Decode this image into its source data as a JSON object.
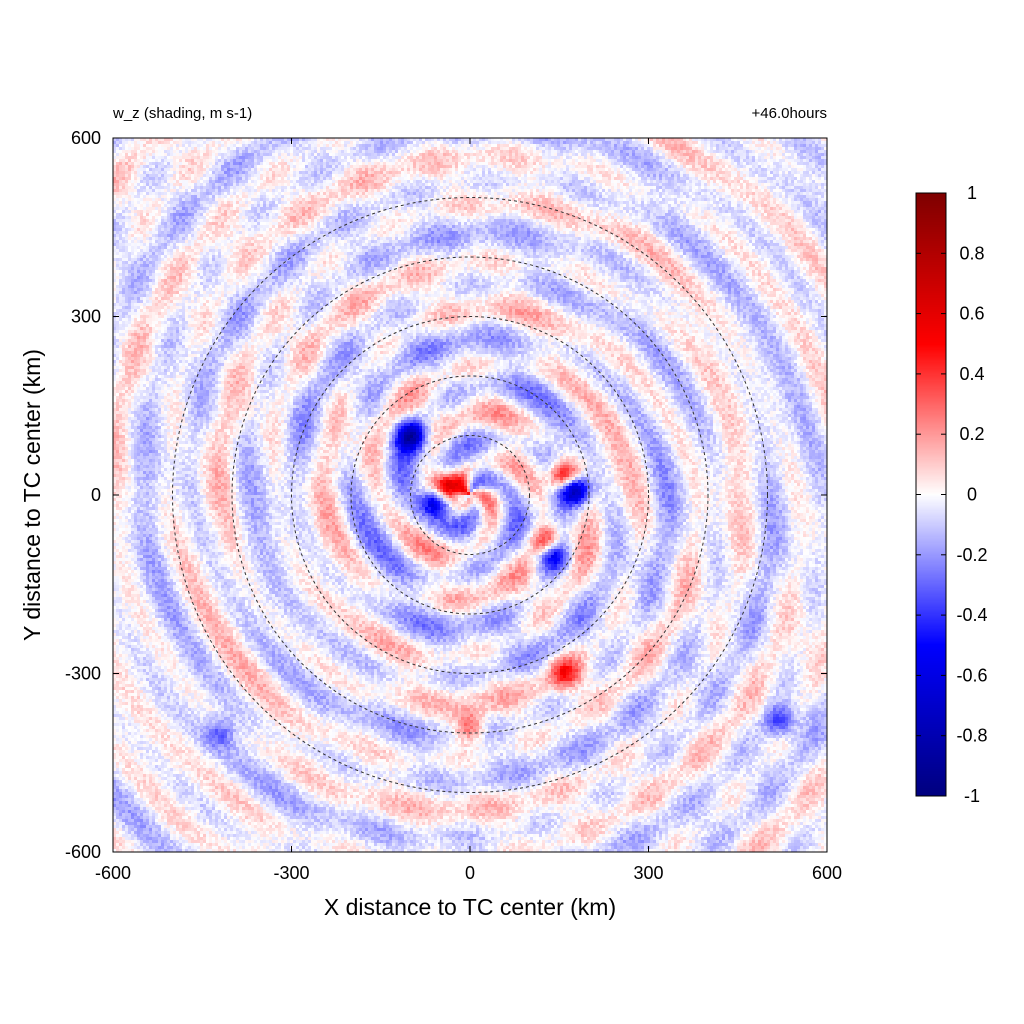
{
  "chart_data": {
    "type": "heatmap",
    "title_left": "w_z (shading, m s-1)",
    "title_right": "+46.0hours",
    "xlabel": "X distance to TC center (km)",
    "ylabel": "Y distance to TC center (km)",
    "xlim": [
      -600,
      600
    ],
    "ylim": [
      -600,
      600
    ],
    "xticks": [
      -600,
      -300,
      0,
      300,
      600
    ],
    "yticks": [
      -600,
      -300,
      0,
      300,
      600
    ],
    "xtick_labels": [
      "-600",
      "-300",
      "0",
      "300",
      "600"
    ],
    "ytick_labels": [
      "-600",
      "-300",
      "0",
      "300",
      "600"
    ],
    "grid": false,
    "colorbar": {
      "range": [
        -1,
        1
      ],
      "ticks": [
        1,
        0.8,
        0.6,
        0.4,
        0.2,
        0,
        -0.2,
        -0.4,
        -0.6,
        -0.8,
        -1
      ],
      "tick_labels": [
        "1",
        "0.8",
        "0.6",
        "0.4",
        "0.2",
        "0",
        "-0.2",
        "-0.4",
        "-0.6",
        "-0.8",
        "-1"
      ],
      "colormap": [
        "#00007f",
        "#0000ff",
        "#ffffff",
        "#ff0000",
        "#7f0000"
      ],
      "placement": "right"
    },
    "range_rings_km": [
      100,
      200,
      300,
      400,
      500
    ],
    "range_ring_style": "dashed",
    "features": [
      {
        "x": -40,
        "y": 10,
        "w": 0.95
      },
      {
        "x": -55,
        "y": -10,
        "w": -0.95
      },
      {
        "x": -100,
        "y": 100,
        "w": -0.7
      },
      {
        "x": 160,
        "y": 30,
        "w": 0.85
      },
      {
        "x": 175,
        "y": 10,
        "w": -0.9
      },
      {
        "x": 130,
        "y": -80,
        "w": 0.6
      },
      {
        "x": 140,
        "y": -100,
        "w": -0.6
      },
      {
        "x": 160,
        "y": -300,
        "w": 0.4
      },
      {
        "x": 0,
        "y": -390,
        "w": 0.4
      },
      {
        "x": 520,
        "y": -380,
        "w": -0.4
      },
      {
        "x": -420,
        "y": -400,
        "w": -0.25
      }
    ]
  }
}
